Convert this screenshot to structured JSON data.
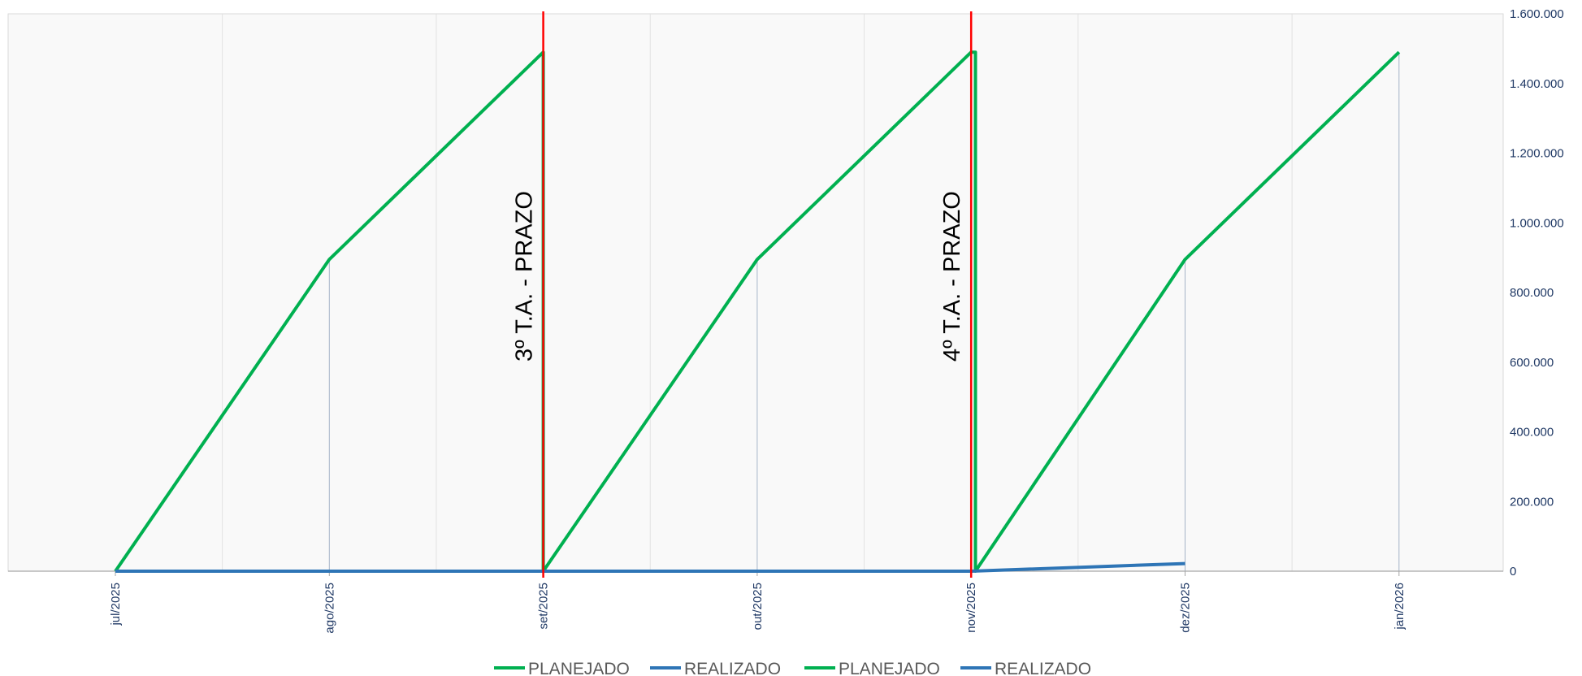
{
  "chart_data": {
    "type": "line",
    "x_ticks": [
      "jul/2025",
      "ago/2025",
      "set/2025",
      "out/2025",
      "nov/2025",
      "dez/2025",
      "jan/2026"
    ],
    "yaxis": {
      "position": "right",
      "ylim": [
        0,
        1600000
      ],
      "tick_values": [
        0,
        200000,
        400000,
        600000,
        800000,
        1000000,
        1200000,
        1400000,
        1600000
      ],
      "tick_labels": [
        "0",
        "200.000",
        "400.000",
        "600.000",
        "800.000",
        "1.000.000",
        "1.200.000",
        "1.400.000",
        "1.600.000"
      ]
    },
    "series": [
      {
        "name": "PLANEJADO",
        "color": "#00b050",
        "points": [
          [
            0,
            0
          ],
          [
            1,
            895000
          ],
          [
            2,
            1490000
          ],
          [
            2,
            0
          ]
        ]
      },
      {
        "name": "REALIZADO",
        "color": "#2e75b6",
        "points": [
          [
            0,
            0
          ],
          [
            2,
            0
          ]
        ]
      },
      {
        "name": "PLANEJADO",
        "color": "#00b050",
        "points": [
          [
            2,
            0
          ],
          [
            3,
            895000
          ],
          [
            4,
            1490000
          ],
          [
            4.02,
            1490000
          ],
          [
            4.02,
            0
          ],
          [
            5,
            895000
          ],
          [
            6,
            1490000
          ]
        ]
      },
      {
        "name": "REALIZADO",
        "color": "#2e75b6",
        "points": [
          [
            2,
            0
          ],
          [
            4,
            0
          ],
          [
            5,
            22000
          ]
        ]
      }
    ],
    "vertical_markers": [
      {
        "label": "3º T.A. - PRAZO",
        "x": 2,
        "color": "#ff0000"
      },
      {
        "label": "4º T.A. - PRAZO",
        "x": 4,
        "color": "#ff0000"
      }
    ],
    "drop_lines_at": [
      1,
      3,
      5,
      6
    ],
    "grid": true,
    "legend": "bottom",
    "legend_entries": [
      {
        "label": "PLANEJADO",
        "color": "#00b050"
      },
      {
        "label": "REALIZADO",
        "color": "#2e75b6"
      },
      {
        "label": "PLANEJADO",
        "color": "#00b050"
      },
      {
        "label": "REALIZADO",
        "color": "#2e75b6"
      }
    ]
  }
}
